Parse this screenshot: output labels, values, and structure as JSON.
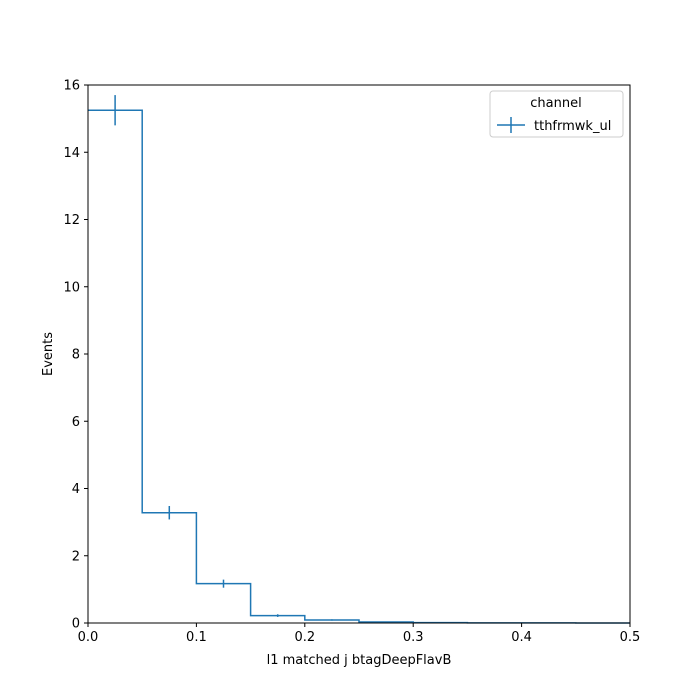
{
  "chart_data": {
    "type": "line",
    "drawstyle": "step-histogram",
    "xlabel": "l1 matched j btagDeepFlavB",
    "ylabel": "Events",
    "xlim": [
      0,
      0.5
    ],
    "ylim": [
      0,
      16
    ],
    "xticks": [
      "0.0",
      "0.1",
      "0.2",
      "0.3",
      "0.4",
      "0.5"
    ],
    "yticks": [
      "0",
      "2",
      "4",
      "6",
      "8",
      "10",
      "12",
      "14",
      "16"
    ],
    "grid": false,
    "legend": {
      "title": "channel",
      "placement": "top-right",
      "entries": [
        "tthfrmwk_ul"
      ]
    },
    "series": [
      {
        "name": "tthfrmwk_ul",
        "color": "#1f77b4",
        "bin_edges": [
          0,
          0.05,
          0.1,
          0.15,
          0.2,
          0.25,
          0.3,
          0.35,
          0.4,
          0.45,
          0.5
        ],
        "values": [
          15.25,
          3.28,
          1.17,
          0.22,
          0.09,
          0.03,
          0.01,
          0.005,
          0.002,
          0.001
        ],
        "errors": [
          0.45,
          0.2,
          0.12,
          0.04,
          0.02,
          0.01,
          0.005,
          0.003,
          0.001,
          0.001
        ]
      }
    ]
  }
}
